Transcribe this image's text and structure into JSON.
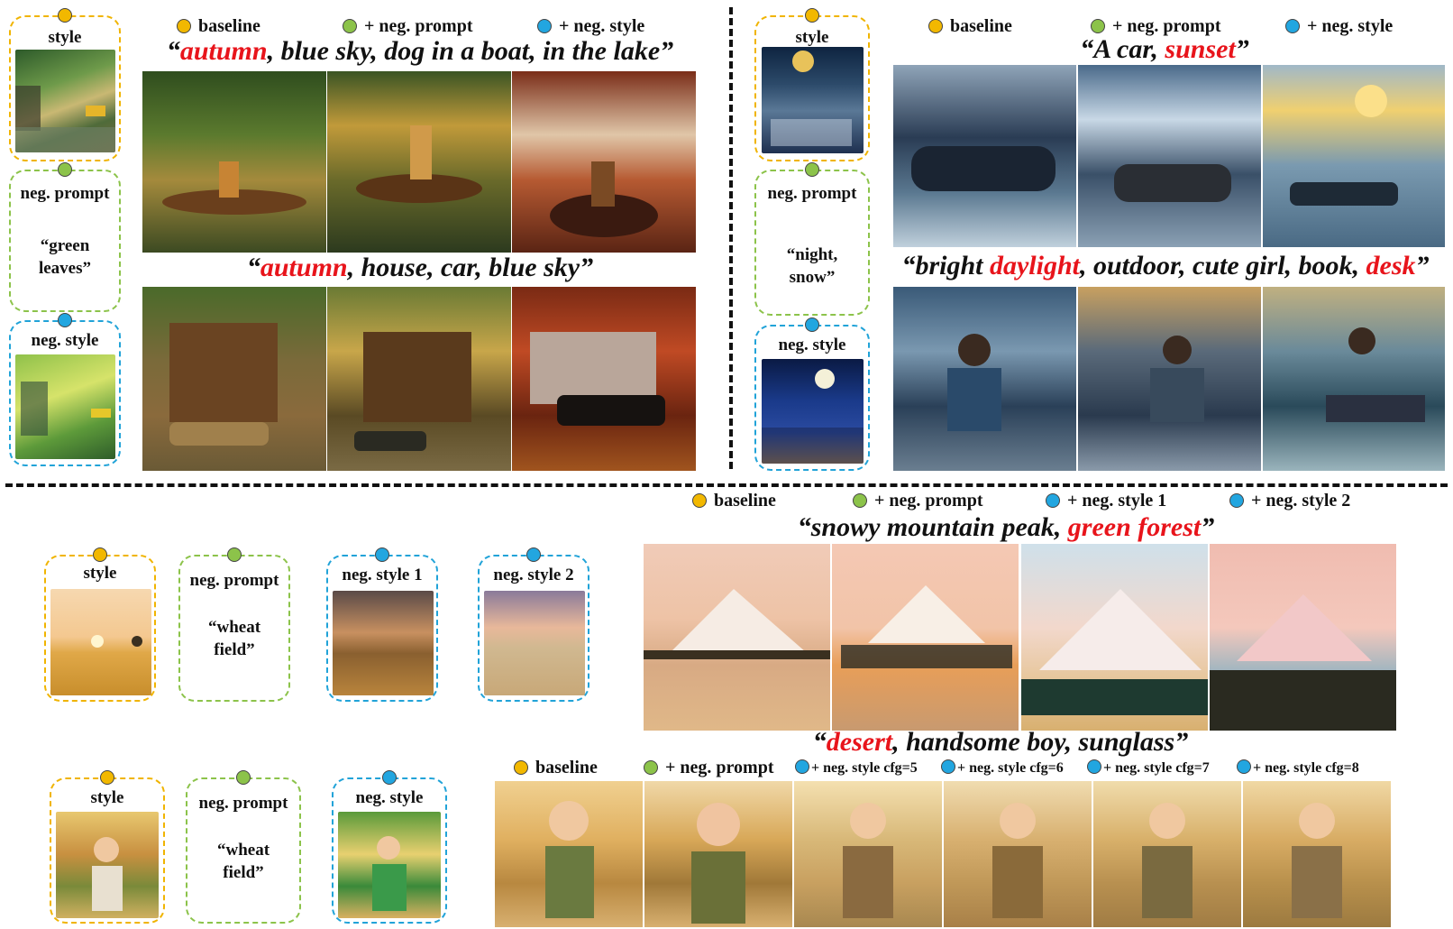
{
  "legend": {
    "baseline": "baseline",
    "neg_prompt": "+ neg. prompt",
    "neg_style": "+ neg. style",
    "neg_style_1": "+ neg. style 1",
    "neg_style_2": "+ neg. style 2",
    "cfg5": "+ neg. style cfg=5",
    "cfg6": "+ neg. style cfg=6",
    "cfg7": "+ neg. style cfg=7",
    "cfg8": "+ neg. style cfg=8"
  },
  "cards": {
    "style": "style",
    "neg_prompt": "neg. prompt",
    "neg_style": "neg. style",
    "neg_style_1": "neg. style 1",
    "neg_style_2": "neg. style 2"
  },
  "panel1": {
    "neg_quote": [
      "“green",
      "leaves”"
    ],
    "prompt1": {
      "open": "“",
      "red": "autumn",
      "rest": ", blue sky, dog in a boat, in the lake”"
    },
    "prompt2": {
      "open": "“",
      "red": "autumn",
      "rest": ", house, car, blue sky”"
    }
  },
  "panel2": {
    "neg_quote": [
      "“night,",
      "snow”"
    ],
    "prompt1": {
      "open": "“A car, ",
      "red": "sunset",
      "rest": "”"
    },
    "prompt2": {
      "open": "“bright ",
      "red": "daylight",
      "mid": ", outdoor, cute girl, book, ",
      "red2": "desk",
      "rest": "”"
    }
  },
  "panel3": {
    "neg_quote": [
      "“wheat",
      "field”"
    ],
    "prompt": {
      "open": "“snowy mountain peak, ",
      "red": "green forest",
      "rest": "”"
    }
  },
  "panel4": {
    "neg_quote": [
      "“wheat",
      "field”"
    ],
    "prompt": {
      "open": "“",
      "red": "desert",
      "rest": ", handsome boy, sunglass”"
    }
  },
  "colors": {
    "accent_red": "#e8141b",
    "gold": "#f2b800",
    "green": "#8cc34a",
    "blue": "#22a6e0"
  }
}
